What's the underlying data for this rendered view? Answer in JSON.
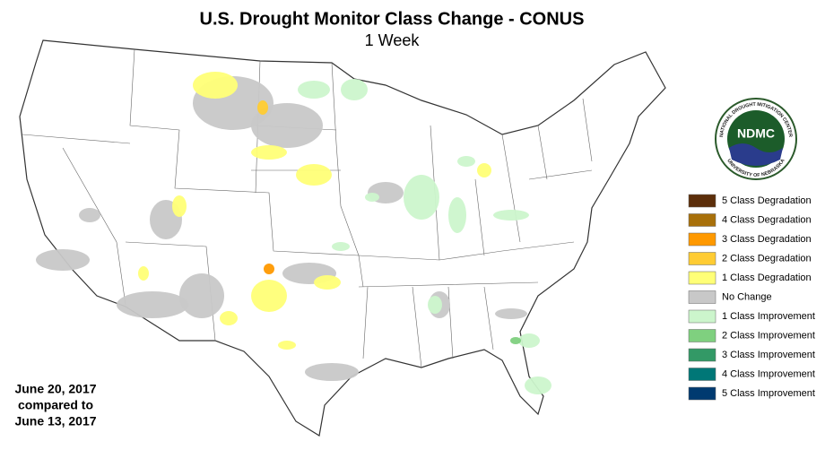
{
  "title": "U.S. Drought Monitor Class Change - CONUS",
  "subtitle": "1 Week",
  "date_note": [
    "June 20, 2017",
    "compared to",
    "June 13, 2017"
  ],
  "logo": {
    "abbr": "NDMC",
    "ring_top": "NATIONAL DROUGHT MITIGATION CENTER",
    "ring_bottom": "UNIVERSITY OF NEBRASKA"
  },
  "legend": [
    {
      "label": "5 Class Degradation",
      "color": "#5c2e0a"
    },
    {
      "label": "4 Class Degradation",
      "color": "#a8700a"
    },
    {
      "label": "3 Class Degradation",
      "color": "#ff9900"
    },
    {
      "label": "2 Class Degradation",
      "color": "#ffcc33"
    },
    {
      "label": "1 Class Degradation",
      "color": "#ffff77"
    },
    {
      "label": "No Change",
      "color": "#c8c8c8"
    },
    {
      "label": "1 Class Improvement",
      "color": "#ccf5cc"
    },
    {
      "label": "2 Class Improvement",
      "color": "#7fd07f"
    },
    {
      "label": "3 Class Improvement",
      "color": "#339966"
    },
    {
      "label": "4 Class Improvement",
      "color": "#007777"
    },
    {
      "label": "5 Class Improvement",
      "color": "#003a70"
    }
  ]
}
